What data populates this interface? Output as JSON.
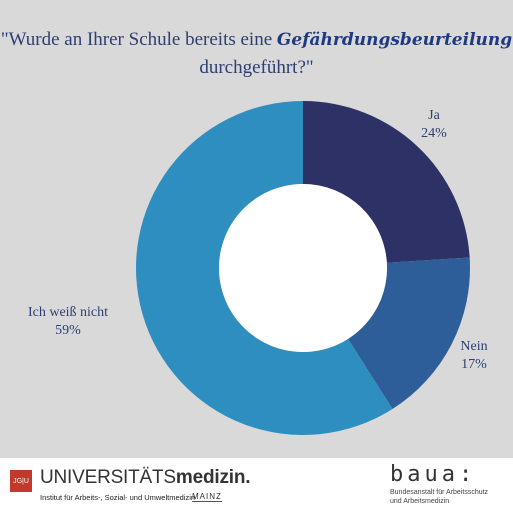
{
  "title": {
    "part1": "\"Wurde an Ihrer Schule bereits eine",
    "highlight": "Gefährdungsbeurteilung",
    "part2": "durchgeführt?\""
  },
  "chart_data": {
    "type": "pie",
    "donut": true,
    "slices": [
      {
        "label": "Ja",
        "value": 24,
        "display": "24%",
        "color": "#2d3166"
      },
      {
        "label": "Nein",
        "value": 17,
        "display": "17%",
        "color": "#2e5e9a"
      },
      {
        "label": "Ich weiß nicht",
        "value": 59,
        "display": "59%",
        "color": "#2f8ec0"
      }
    ]
  },
  "footer": {
    "jgu_logo": "JG|U",
    "um_prefix": "UNIVERSITÄTS",
    "um_bold": "medizin.",
    "institute": "Institut für Arbeits-, Sozial- und Umweltmedizin",
    "mainz": "MAINZ",
    "baua_logo": "baua:",
    "baua_line1": "Bundesanstalt für Arbeitsschutz",
    "baua_line2": "und Arbeitsmedizin"
  }
}
